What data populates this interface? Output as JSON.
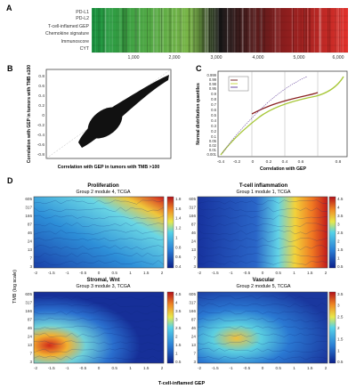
{
  "panelA": {
    "letter": "A",
    "rows": [
      "PD-L1",
      "PD-L2",
      "T-cell-inflamed GEP",
      "Chemokine signature",
      "Immunoscore",
      "CYT"
    ],
    "xticks": [
      "1,000",
      "2,000",
      "3,000",
      "4,000",
      "5,000",
      "6,000"
    ]
  },
  "panelB": {
    "letter": "B",
    "xlabel": "Correlation with GEP in tumors with TMB >100",
    "ylabel": "Correlation with GEP in tumors with TMB ≤100",
    "xticks": [
      "-0.4",
      "-0.2",
      "0",
      "0.2",
      "0.4",
      "0.6",
      "0.8"
    ],
    "yticks": [
      "0.8",
      "0.6",
      "0.4",
      "0.2",
      "0",
      "-0.2",
      "-0.4",
      "-0.6",
      "-0.8"
    ]
  },
  "panelC": {
    "letter": "C",
    "xlabel": "Correlation with GEP",
    "ylabel": "Normal distribution quantiles",
    "xticks": [
      "-0.4",
      "-0.2",
      "0",
      "0.2",
      "0.4",
      "0.6",
      "0.8"
    ],
    "yticks": [
      "0.999",
      "0.99",
      "0.98",
      "0.95",
      "0.9",
      "0.8",
      "0.7",
      "0.6",
      "0.5",
      "0.4",
      "0.3",
      "0.2",
      "0.1",
      "0.05",
      "0.02",
      "0.01",
      "0.001"
    ]
  },
  "panelD": {
    "letter": "D",
    "ylabel": "TMB (log scale)",
    "xlabel": "T-cell-inflamed GEP",
    "xticks": [
      "-2",
      "-1.5",
      "-1",
      "-0.5",
      "0",
      "0.5",
      "1",
      "1.5",
      "2"
    ],
    "yticks": [
      "605",
      "317",
      "166",
      "87",
      "46",
      "24",
      "13",
      "7",
      "3"
    ],
    "heatmaps": [
      {
        "title": "Proliferation",
        "subtitle": "Group 2 module 4, TCGA",
        "scale": [
          "1.8",
          "1.6",
          "1.4",
          "1.2",
          "1",
          "0.8",
          "0.6",
          "0.4"
        ]
      },
      {
        "title": "T-cell inflammation",
        "subtitle": "Group 1 module 1, TCGA",
        "scale": [
          "4.5",
          "4",
          "3.5",
          "3",
          "2.5",
          "2",
          "1.5",
          "1",
          "0.5"
        ]
      },
      {
        "title": "Stromal, Wnt",
        "subtitle": "Group 3 module 3, TCGA",
        "scale": [
          "4.5",
          "4",
          "3.5",
          "3",
          "2.5",
          "2",
          "1.5",
          "1",
          "0.5"
        ]
      },
      {
        "title": "Vascular",
        "subtitle": "Group 2 module 5, TCGA",
        "scale": [
          "3.5",
          "3",
          "2.5",
          "2",
          "1.5",
          "1",
          "0.5"
        ]
      }
    ]
  },
  "colors": {
    "red": "#d7191c",
    "green": "#1a9641",
    "jetBlue": "#1f3fa8",
    "jetRed": "#c8102e"
  }
}
